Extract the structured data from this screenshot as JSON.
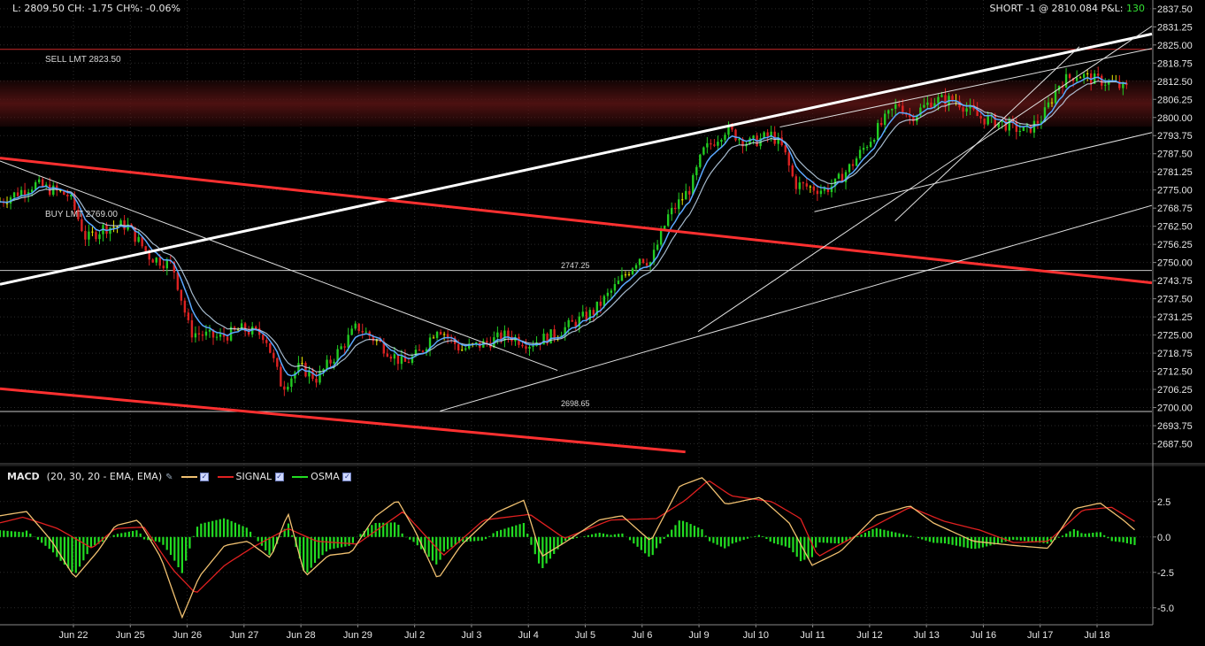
{
  "header": {
    "last_info": "L: 2809.50 CH: -1.75 CH%: -0.06%",
    "position_info": "SHORT -1 @ 2810.084 P&L:",
    "pnl": "130"
  },
  "order_labels": {
    "sell": "SELL LMT 2823.50",
    "buy": "BUY LMT 2769.00",
    "hline_upper": "2747.25",
    "hline_lower": "2698.65"
  },
  "macd_legend": {
    "name": "MACD",
    "params": "(20, 30, 20 - EMA, EMA)",
    "signal": "SIGNAL",
    "osma": "OSMA"
  },
  "colors": {
    "background": "#000000",
    "grid": "#2a2a2a",
    "up_candle": "#22cc22",
    "down_candle": "#dd2222",
    "doji": "#e8e800",
    "ma_fast": "#5aa8ff",
    "ma_slow": "#d0e8ff",
    "trend_red": "#ff3030",
    "trend_white": "#ffffff",
    "macd_line": "#f0c070",
    "signal_line": "#e02020",
    "osma": "#22dd22",
    "resistance_zone": "#5a1414"
  },
  "chart_data": [
    {
      "type": "candlestick",
      "instrument_last": 2809.5,
      "ylim": [
        2681.25,
        2840.5
      ],
      "y_ticks": [
        2837.5,
        2831.25,
        2825.0,
        2818.75,
        2812.5,
        2806.25,
        2800.0,
        2793.75,
        2787.5,
        2781.25,
        2775.0,
        2768.75,
        2762.5,
        2756.25,
        2750.0,
        2743.75,
        2737.5,
        2731.25,
        2725.0,
        2718.75,
        2712.5,
        2706.25,
        2700.0,
        2693.75,
        2687.5
      ],
      "x_ticks": [
        "Jun 22",
        "Jun 25",
        "Jun 26",
        "Jun 27",
        "Jun 28",
        "Jun 29",
        "Jul 2",
        "Jul 3",
        "Jul 4",
        "Jul 5",
        "Jul 6",
        "Jul 9",
        "Jul 10",
        "Jul 11",
        "Jul 12",
        "Jul 13",
        "Jul 16",
        "Jul 17",
        "Jul 18"
      ],
      "price_path": [
        [
          0,
          2771
        ],
        [
          3,
          2777
        ],
        [
          6,
          2773
        ],
        [
          7.5,
          2758
        ],
        [
          9,
          2762
        ],
        [
          11,
          2763
        ],
        [
          13,
          2752
        ],
        [
          15,
          2749
        ],
        [
          16.5,
          2726
        ],
        [
          19,
          2724
        ],
        [
          21,
          2727
        ],
        [
          23,
          2725
        ],
        [
          24.5,
          2707
        ],
        [
          26,
          2714
        ],
        [
          27.5,
          2710
        ],
        [
          29.5,
          2720
        ],
        [
          31,
          2728
        ],
        [
          33,
          2722
        ],
        [
          35,
          2715
        ],
        [
          36.5,
          2719
        ],
        [
          38,
          2728
        ],
        [
          40,
          2720
        ],
        [
          42,
          2722
        ],
        [
          44,
          2725
        ],
        [
          46,
          2722
        ],
        [
          48,
          2725
        ],
        [
          51.5,
          2733
        ],
        [
          53.5,
          2742
        ],
        [
          55.5,
          2752
        ],
        [
          56.5,
          2750
        ],
        [
          58,
          2766
        ],
        [
          60,
          2776
        ],
        [
          61,
          2788
        ],
        [
          63,
          2796
        ],
        [
          65,
          2791
        ],
        [
          67,
          2794
        ],
        [
          68,
          2789
        ],
        [
          69,
          2777
        ],
        [
          71.5,
          2775
        ],
        [
          72.5,
          2777
        ],
        [
          74,
          2784
        ],
        [
          76,
          2795
        ],
        [
          78,
          2805
        ],
        [
          79,
          2800
        ],
        [
          81,
          2806
        ],
        [
          83,
          2806
        ],
        [
          85,
          2800
        ],
        [
          87,
          2798
        ],
        [
          89,
          2795
        ],
        [
          90.5,
          2800
        ],
        [
          92,
          2812
        ],
        [
          93.5,
          2815
        ],
        [
          95,
          2813
        ],
        [
          96.5,
          2812
        ],
        [
          97.5,
          2810
        ]
      ],
      "resistance_zone": [
        2800.5,
        2811.0
      ],
      "horizontal_levels": [
        {
          "price": 2823.5,
          "color": "#cc2a2a"
        },
        {
          "price": 2747.25,
          "color": "#c8c8c8"
        },
        {
          "price": 2698.65,
          "color": "#c8c8c8"
        }
      ],
      "trend_lines": [
        {
          "from": [
            0,
            2742.5
          ],
          "to": [
            100,
            2828.8
          ],
          "color": "#ffffff",
          "weight": 3
        },
        {
          "from": [
            0,
            2786.0
          ],
          "to": [
            100,
            2743.0
          ],
          "color": "#ff3030",
          "weight": 3
        },
        {
          "from": [
            0,
            2706.5
          ],
          "to": [
            59.5,
            2684.7
          ],
          "color": "#ff3030",
          "weight": 3
        },
        {
          "from": [
            0,
            2785.0
          ],
          "to": [
            48.4,
            2712.8
          ],
          "color": "#e0e0e0",
          "weight": 1
        },
        {
          "from": [
            38.2,
            2698.8
          ],
          "to": [
            100,
            2769.7
          ],
          "color": "#e0e0e0",
          "weight": 1
        },
        {
          "from": [
            60.6,
            2726.2
          ],
          "to": [
            100,
            2831.5
          ],
          "color": "#e0e0e0",
          "weight": 1
        },
        {
          "from": [
            67.7,
            2796.7
          ],
          "to": [
            100,
            2823.8
          ],
          "color": "#e0e0e0",
          "weight": 1
        },
        {
          "from": [
            70.7,
            2767.5
          ],
          "to": [
            100,
            2794.8
          ],
          "color": "#e0e0e0",
          "weight": 1
        },
        {
          "from": [
            77.7,
            2764.3
          ],
          "to": [
            93.7,
            2824.4
          ],
          "color": "#e0e0e0",
          "weight": 1
        }
      ]
    },
    {
      "type": "macd",
      "ylim": [
        -6.2,
        4.8
      ],
      "y_ticks": [
        2.5,
        0.0,
        -2.5,
        -5.0
      ],
      "macd_path": [
        [
          0,
          1.5
        ],
        [
          2.3,
          1.8
        ],
        [
          4.5,
          -0.3
        ],
        [
          6.5,
          -2.9
        ],
        [
          8.5,
          -1.0
        ],
        [
          10,
          0.8
        ],
        [
          12,
          1.2
        ],
        [
          14,
          -1.5
        ],
        [
          15.8,
          -5.7
        ],
        [
          17.3,
          -2.8
        ],
        [
          19.5,
          -0.6
        ],
        [
          21.5,
          -0.3
        ],
        [
          23.5,
          -1.5
        ],
        [
          25,
          1.7
        ],
        [
          26.5,
          -2.8
        ],
        [
          28.5,
          -1.3
        ],
        [
          30.5,
          -1.1
        ],
        [
          32.5,
          1.4
        ],
        [
          34.5,
          2.6
        ],
        [
          36,
          0.5
        ],
        [
          38,
          -3.0
        ],
        [
          40,
          -0.6
        ],
        [
          43,
          1.7
        ],
        [
          45.5,
          2.6
        ],
        [
          47,
          -1.4
        ],
        [
          49,
          -0.4
        ],
        [
          52,
          1.2
        ],
        [
          54,
          1.5
        ],
        [
          56.5,
          -0.3
        ],
        [
          59,
          3.6
        ],
        [
          61,
          4.2
        ],
        [
          63,
          2.3
        ],
        [
          66,
          2.8
        ],
        [
          68.5,
          1.0
        ],
        [
          70.5,
          -2.0
        ],
        [
          73,
          -1.0
        ],
        [
          76,
          1.5
        ],
        [
          79,
          2.2
        ],
        [
          81,
          1.0
        ],
        [
          84.5,
          -0.3
        ],
        [
          88,
          -0.6
        ],
        [
          91,
          -0.8
        ],
        [
          93.3,
          2.0
        ],
        [
          95.5,
          2.4
        ],
        [
          97.5,
          1.2
        ],
        [
          98.5,
          0.5
        ]
      ],
      "signal_path": [
        [
          0,
          1.0
        ],
        [
          2,
          1.4
        ],
        [
          5,
          0.6
        ],
        [
          8,
          -0.8
        ],
        [
          10,
          0.6
        ],
        [
          12.5,
          0.7
        ],
        [
          15,
          -2.3
        ],
        [
          17,
          -4.0
        ],
        [
          19.5,
          -2.0
        ],
        [
          22,
          -0.7
        ],
        [
          25,
          0.6
        ],
        [
          27.5,
          -0.3
        ],
        [
          31,
          -0.5
        ],
        [
          35,
          1.8
        ],
        [
          38.5,
          -1.3
        ],
        [
          42,
          1.2
        ],
        [
          46,
          1.6
        ],
        [
          49,
          -0.1
        ],
        [
          53,
          1.2
        ],
        [
          57,
          1.3
        ],
        [
          59.5,
          2.6
        ],
        [
          61.5,
          4.0
        ],
        [
          63.5,
          2.9
        ],
        [
          67,
          2.5
        ],
        [
          69.5,
          1.3
        ],
        [
          71,
          -1.4
        ],
        [
          75,
          0.4
        ],
        [
          79,
          2.1
        ],
        [
          82,
          1.1
        ],
        [
          85,
          0.5
        ],
        [
          88,
          -0.4
        ],
        [
          91,
          -0.3
        ],
        [
          94,
          1.9
        ],
        [
          96.5,
          2.1
        ],
        [
          98.5,
          1.1
        ]
      ]
    }
  ]
}
